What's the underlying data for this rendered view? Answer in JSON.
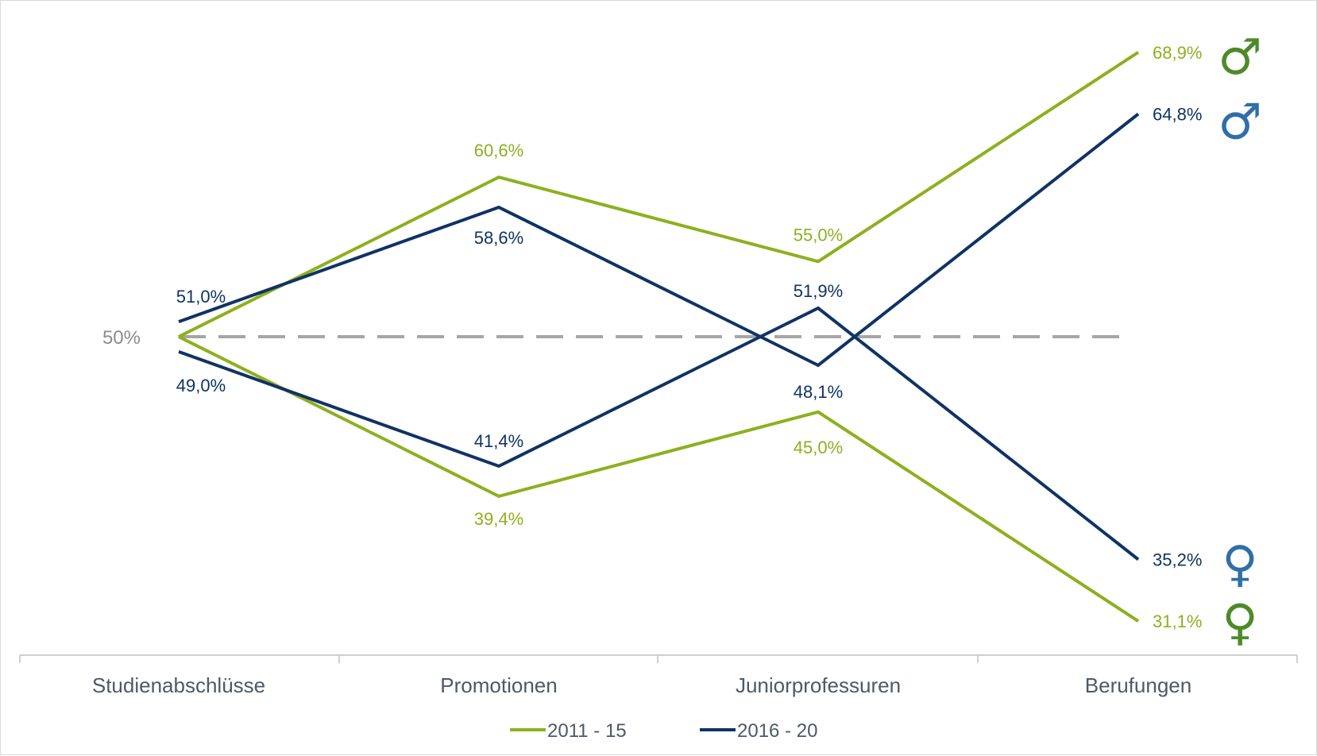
{
  "chart_data": {
    "type": "line",
    "categories": [
      "Studienabschlüsse",
      "Promotionen",
      "Juniorprofessuren",
      "Berufungen"
    ],
    "ylim": [
      30,
      70
    ],
    "reference": {
      "value": 50,
      "label": "50%",
      "style": "dashed"
    },
    "legend_position": "bottom",
    "legend": [
      "2011 - 15",
      "2016 - 20"
    ],
    "series": [
      {
        "name": "2011 - 15",
        "color": "#8db01e",
        "symbol_color": "#4e8a2a",
        "men_values": [
          50.0,
          60.6,
          55.0,
          68.9
        ],
        "women_values": [
          50.0,
          39.4,
          45.0,
          31.1
        ],
        "men_labels": [
          "",
          "60,6%",
          "55,0%",
          "68,9%"
        ],
        "women_labels": [
          "",
          "39,4%",
          "45,0%",
          "31,1%"
        ]
      },
      {
        "name": "2016 - 20",
        "color": "#0f3364",
        "symbol_color": "#2f6fa8",
        "men_values": [
          51.0,
          58.6,
          48.1,
          64.8
        ],
        "women_values": [
          49.0,
          41.4,
          51.9,
          35.2
        ],
        "men_labels": [
          "51,0%",
          "58,6%",
          "48,1%",
          "64,8%"
        ],
        "women_labels": [
          "49,0%",
          "41,4%",
          "51,9%",
          "35,2%"
        ]
      }
    ],
    "symbols": {
      "male": "♂",
      "female": "♀"
    },
    "reference_color": "#a6a6a6",
    "axis_color": "#d0d0d0"
  }
}
